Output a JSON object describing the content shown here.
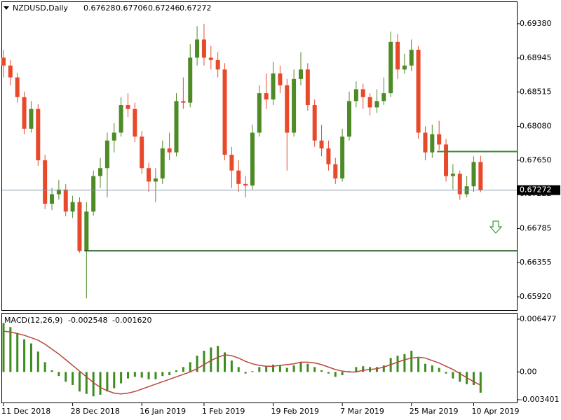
{
  "chart_data": {
    "type": "candlestick",
    "title": "NZDUSD,Daily",
    "categories": [
      "11 Dec 2018",
      null,
      null,
      null,
      null,
      null,
      null,
      null,
      null,
      null,
      "28 Dec 2018",
      null,
      null,
      null,
      null,
      null,
      null,
      null,
      null,
      null,
      "16 Jan 2019",
      null,
      null,
      null,
      null,
      null,
      null,
      null,
      null,
      "1 Feb 2019",
      null,
      null,
      null,
      null,
      null,
      null,
      null,
      null,
      null,
      "19 Feb 2019",
      null,
      null,
      null,
      null,
      null,
      null,
      null,
      null,
      null,
      "7 Mar 2019",
      null,
      null,
      null,
      null,
      null,
      null,
      null,
      null,
      null,
      "25 Mar 2019",
      null,
      null,
      null,
      null,
      null,
      null,
      null,
      null,
      "10 Apr 2019",
      null
    ],
    "open": [
      0.6895,
      0.6885,
      0.687,
      0.6845,
      0.6805,
      0.683,
      0.6765,
      0.671,
      0.6722,
      0.6728,
      0.67,
      0.6712,
      0.665,
      0.67,
      0.6745,
      0.6755,
      0.679,
      0.68,
      0.6835,
      0.683,
      0.6795,
      0.6755,
      0.6738,
      0.6742,
      0.678,
      0.6775,
      0.684,
      0.6838,
      0.6895,
      0.6918,
      0.6895,
      0.6892,
      0.688,
      0.6772,
      0.6752,
      0.6735,
      0.6733,
      0.68,
      0.685,
      0.6842,
      0.6875,
      0.686,
      0.68,
      0.6868,
      0.688,
      0.6835,
      0.679,
      0.678,
      0.676,
      0.6742,
      0.6795,
      0.684,
      0.6855,
      0.6845,
      0.6832,
      0.684,
      0.685,
      0.6915,
      0.688,
      0.6885,
      0.6905,
      0.68,
      0.6775,
      0.6798,
      0.6785,
      0.6745,
      0.6748,
      0.6722,
      0.6732,
      0.67628
    ],
    "high": [
      0.6905,
      0.6892,
      0.6876,
      0.6852,
      0.684,
      0.6836,
      0.6772,
      0.673,
      0.674,
      0.6735,
      0.672,
      0.6718,
      0.6712,
      0.6752,
      0.6768,
      0.68,
      0.6812,
      0.6845,
      0.685,
      0.6838,
      0.6802,
      0.6762,
      0.6755,
      0.679,
      0.68,
      0.685,
      0.687,
      0.6912,
      0.6935,
      0.6938,
      0.691,
      0.6902,
      0.6888,
      0.6782,
      0.6765,
      0.6745,
      0.681,
      0.686,
      0.6875,
      0.689,
      0.6885,
      0.6868,
      0.688,
      0.6902,
      0.6888,
      0.6842,
      0.681,
      0.679,
      0.6768,
      0.6805,
      0.6852,
      0.6865,
      0.6862,
      0.685,
      0.6855,
      0.687,
      0.6928,
      0.6925,
      0.69,
      0.6918,
      0.691,
      0.6808,
      0.681,
      0.6815,
      0.6792,
      0.676,
      0.6752,
      0.6745,
      0.677,
      0.67706
    ],
    "low": [
      0.687,
      0.686,
      0.6838,
      0.6798,
      0.68,
      0.6758,
      0.6703,
      0.6702,
      0.6715,
      0.6694,
      0.6692,
      0.6648,
      0.659,
      0.6695,
      0.673,
      0.6718,
      0.6775,
      0.6795,
      0.682,
      0.6788,
      0.6748,
      0.6725,
      0.6712,
      0.6735,
      0.6765,
      0.677,
      0.683,
      0.6832,
      0.6885,
      0.6885,
      0.688,
      0.687,
      0.6765,
      0.673,
      0.6725,
      0.6718,
      0.6728,
      0.6795,
      0.683,
      0.6835,
      0.685,
      0.6752,
      0.6795,
      0.686,
      0.6828,
      0.6782,
      0.677,
      0.6752,
      0.6735,
      0.6738,
      0.679,
      0.6832,
      0.683,
      0.6822,
      0.6825,
      0.6835,
      0.6845,
      0.6868,
      0.6875,
      0.6878,
      0.6792,
      0.6765,
      0.6768,
      0.6778,
      0.6738,
      0.6728,
      0.6715,
      0.6718,
      0.6725,
      0.67246
    ],
    "close": [
      0.6885,
      0.687,
      0.6845,
      0.6805,
      0.683,
      0.6765,
      0.671,
      0.6722,
      0.6728,
      0.67,
      0.6712,
      0.665,
      0.67,
      0.6745,
      0.6755,
      0.679,
      0.68,
      0.6835,
      0.683,
      0.6795,
      0.6755,
      0.6738,
      0.6742,
      0.678,
      0.6775,
      0.684,
      0.6838,
      0.6895,
      0.6918,
      0.6895,
      0.6892,
      0.688,
      0.6772,
      0.6752,
      0.6735,
      0.6733,
      0.68,
      0.685,
      0.6842,
      0.6875,
      0.686,
      0.68,
      0.6868,
      0.688,
      0.6835,
      0.679,
      0.678,
      0.676,
      0.6742,
      0.6795,
      0.684,
      0.6855,
      0.6845,
      0.6832,
      0.684,
      0.685,
      0.6915,
      0.688,
      0.6885,
      0.6905,
      0.68,
      0.6775,
      0.6798,
      0.6785,
      0.6745,
      0.6748,
      0.6722,
      0.6732,
      0.67628,
      0.67272
    ],
    "up_color": "#4e8a26",
    "down_color": "#e8492b",
    "ylim": [
      0.65752,
      0.69654
    ],
    "yticks": [
      {
        "value": 0.6938,
        "label": "0.69380"
      },
      {
        "value": 0.68945,
        "label": "0.68945"
      },
      {
        "value": 0.68515,
        "label": "0.68515"
      },
      {
        "value": 0.6808,
        "label": "0.68080"
      },
      {
        "value": 0.6765,
        "label": "0.67650"
      },
      {
        "value": 0.67222,
        "label": "0.67222"
      },
      {
        "value": 0.66785,
        "label": "0.66785"
      },
      {
        "value": 0.66355,
        "label": "0.66355"
      },
      {
        "value": 0.6592,
        "label": "0.65920"
      }
    ],
    "levels": [
      {
        "value": 0.67761,
        "start": 63,
        "color": "#3a8a3a"
      },
      {
        "value": 0.66504,
        "start": 12,
        "color": "#2d5e2d"
      }
    ],
    "macd": {
      "label": "MACD(12,26,9)",
      "last_labels": [
        "-0.002548",
        "-0.001620"
      ],
      "color": "#3c8c1e",
      "signal_color": "#b9473c",
      "values": [
        0.006,
        0.0055,
        0.0048,
        0.004,
        0.0035,
        0.0025,
        0.0012,
        0.0002,
        -0.0005,
        -0.0012,
        -0.0016,
        -0.0024,
        -0.0027,
        -0.003,
        -0.0028,
        -0.0024,
        -0.002,
        -0.0014,
        -0.0008,
        -0.0006,
        -0.0007,
        -0.0009,
        -0.0009,
        -0.0005,
        -0.0004,
        0.0002,
        0.0006,
        0.0012,
        0.002,
        0.0026,
        0.003,
        0.0032,
        0.0024,
        0.0014,
        0.0006,
        -0.0002,
        0.0001,
        0.0006,
        0.0007,
        0.0009,
        0.0008,
        0.0005,
        0.0008,
        0.0012,
        0.001,
        0.0006,
        0.0002,
        -0.0002,
        -0.0006,
        -0.0004,
        0.0001,
        0.0006,
        0.0007,
        0.0006,
        0.0006,
        0.0008,
        0.0017,
        0.002,
        0.0022,
        0.0026,
        0.0017,
        0.001,
        0.0008,
        0.0005,
        -0.0002,
        -0.0008,
        -0.0012,
        -0.0015,
        -0.0016,
        -0.002548
      ],
      "signal": [
        0.005,
        0.0049,
        0.0047,
        0.0045,
        0.0042,
        0.0039,
        0.0034,
        0.0028,
        0.0022,
        0.0015,
        0.0008,
        0.0001,
        -0.0006,
        -0.0013,
        -0.0019,
        -0.0023,
        -0.0026,
        -0.0027,
        -0.0026,
        -0.0024,
        -0.0021,
        -0.0018,
        -0.0015,
        -0.0012,
        -0.0009,
        -0.0006,
        -0.0003,
        0,
        0.0004,
        0.0009,
        0.0014,
        0.0018,
        0.0021,
        0.002,
        0.0017,
        0.0013,
        0.001,
        0.0008,
        0.0007,
        0.0007,
        0.0008,
        0.0009,
        0.001,
        0.0012,
        0.0012,
        0.0011,
        0.0009,
        0.0006,
        0.0003,
        0.0001,
        0,
        0,
        0.0002,
        0.0003,
        0.0004,
        0.0006,
        0.0009,
        0.0012,
        0.0015,
        0.0017,
        0.0018,
        0.0017,
        0.0014,
        0.0011,
        0.0007,
        0.0003,
        -0.0002,
        -0.0007,
        -0.0012,
        -0.00162
      ],
      "ylim": [
        -0.00375,
        0.007159
      ],
      "yticks": [
        0.006477,
        {
          "value": 0,
          "label": "0.00"
        },
        -0.003401
      ]
    }
  }
}
